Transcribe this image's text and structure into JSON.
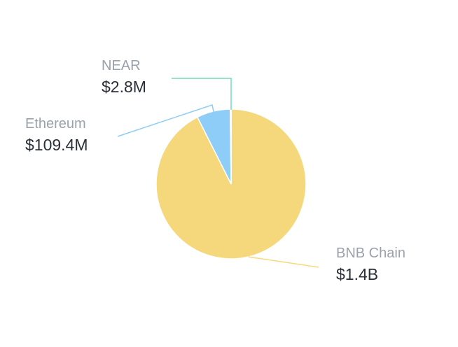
{
  "chart_data": {
    "type": "pie",
    "categories": [
      "BNB Chain",
      "Ethereum",
      "NEAR"
    ],
    "values": [
      1400000000,
      109400000,
      2800000
    ],
    "value_labels": [
      "$1.4B",
      "$109.4M",
      "$2.8M"
    ],
    "colors": [
      "#f6d87c",
      "#8dcdf7",
      "#72dcbc"
    ]
  }
}
